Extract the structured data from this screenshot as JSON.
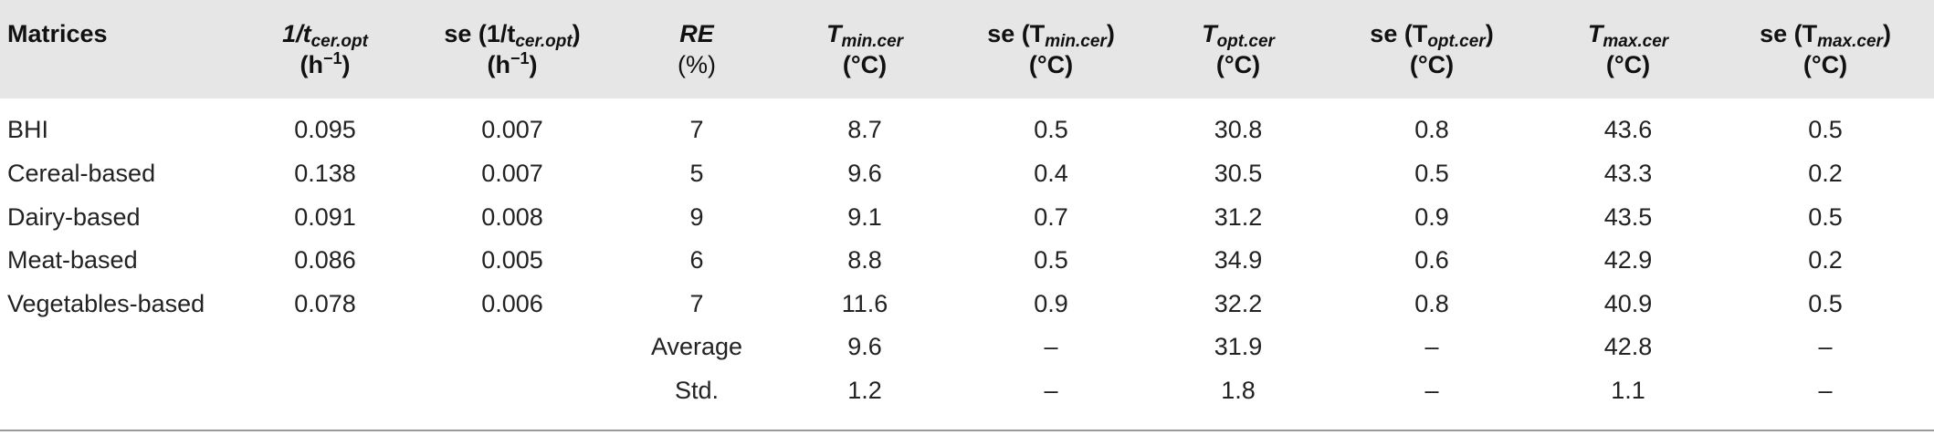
{
  "header": {
    "matrices": "Matrices",
    "inv_tcer_symbol": "1/t",
    "inv_tcer_sub": "cer.opt",
    "inv_tcer_unit_base": "(h",
    "inv_tcer_unit_exp": "−1",
    "inv_tcer_unit_close": ")",
    "se_inv_tcer_prefix": "se (1/t",
    "se_inv_tcer_sub": "cer.opt",
    "se_inv_tcer_suffix": ")",
    "se_inv_tcer_unit_base": "(h",
    "se_inv_tcer_unit_exp": "−1",
    "se_inv_tcer_unit_close": ")",
    "re_label": "RE",
    "re_unit": "(%)",
    "tmin_symbol": "T",
    "tmin_sub": "min.cer",
    "tmin_unit": "(°C)",
    "se_tmin_prefix": "se (T",
    "se_tmin_sub": "min.cer",
    "se_tmin_suffix": ")",
    "se_tmin_unit": "(°C)",
    "topt_symbol": "T",
    "topt_sub": "opt.cer",
    "topt_unit": "(°C)",
    "se_topt_prefix": "se (T",
    "se_topt_sub": "opt.cer",
    "se_topt_suffix": ")",
    "se_topt_unit": "(°C)",
    "tmax_symbol": "T",
    "tmax_sub": "max.cer",
    "tmax_unit": "(°C)",
    "se_tmax_prefix": "se (T",
    "se_tmax_sub": "max.cer",
    "se_tmax_suffix": ")",
    "se_tmax_unit": "(°C)"
  },
  "rows": [
    [
      "BHI",
      "0.095",
      "0.007",
      "7",
      "8.7",
      "0.5",
      "30.8",
      "0.8",
      "43.6",
      "0.5"
    ],
    [
      "Cereal-based",
      "0.138",
      "0.007",
      "5",
      "9.6",
      "0.4",
      "30.5",
      "0.5",
      "43.3",
      "0.2"
    ],
    [
      "Dairy-based",
      "0.091",
      "0.008",
      "9",
      "9.1",
      "0.7",
      "31.2",
      "0.9",
      "43.5",
      "0.5"
    ],
    [
      "Meat-based",
      "0.086",
      "0.005",
      "6",
      "8.8",
      "0.5",
      "34.9",
      "0.6",
      "42.9",
      "0.2"
    ],
    [
      "Vegetables-based",
      "0.078",
      "0.006",
      "7",
      "11.6",
      "0.9",
      "32.2",
      "0.8",
      "40.9",
      "0.5"
    ],
    [
      "",
      "",
      "",
      "Average",
      "9.6",
      "–",
      "31.9",
      "–",
      "42.8",
      "–"
    ],
    [
      "",
      "",
      "",
      "Std.",
      "1.2",
      "–",
      "1.8",
      "–",
      "1.1",
      "–"
    ]
  ]
}
